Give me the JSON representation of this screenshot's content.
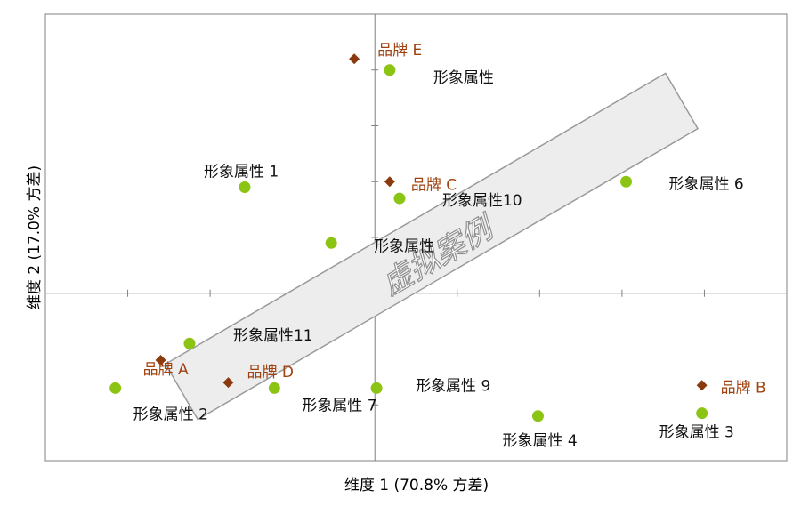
{
  "chart_data": {
    "type": "scatter",
    "xlabel": "维度 1 (70.8% 方差)",
    "ylabel": "维度 2 (17.0% 方差)",
    "xlim": [
      -4.0,
      5.0
    ],
    "ylim": [
      -3.0,
      5.0
    ],
    "axis_style": "crosshair through origin",
    "grid": false,
    "watermark": "虚拟案例",
    "series": [
      {
        "name": "品牌",
        "color": "#8b3a0f",
        "marker": "diamond",
        "points": [
          {
            "label": "品牌 E",
            "x": -0.25,
            "y": 4.2
          },
          {
            "label": "品牌 C",
            "x": 0.18,
            "y": 2.0
          },
          {
            "label": "品牌 A",
            "x": -2.6,
            "y": -1.2
          },
          {
            "label": "品牌 D",
            "x": -1.78,
            "y": -1.6
          },
          {
            "label": "品牌 B",
            "x": 3.97,
            "y": -1.65
          }
        ]
      },
      {
        "name": "形象属性",
        "color": "#8cc414",
        "marker": "circle",
        "points": [
          {
            "label": "形象属性",
            "x": 0.18,
            "y": 4.0
          },
          {
            "label": "形象属性 1",
            "x": -1.58,
            "y": 1.9
          },
          {
            "label": "形象属性10",
            "x": 0.3,
            "y": 1.7
          },
          {
            "label": "形象属性 6",
            "x": 3.05,
            "y": 2.0
          },
          {
            "label": "形象属性",
            "x": -0.53,
            "y": 0.9
          },
          {
            "label": "形象属性11",
            "x": -2.25,
            "y": -0.9
          },
          {
            "label": "形象属性 2",
            "x": -3.15,
            "y": -1.7
          },
          {
            "label": "形象属性 7",
            "x": -1.22,
            "y": -1.7
          },
          {
            "label": "形象属性 9",
            "x": 0.02,
            "y": -1.7
          },
          {
            "label": "形象属性 4",
            "x": 1.98,
            "y": -2.2
          },
          {
            "label": "形象属性 3",
            "x": 3.97,
            "y": -2.15
          }
        ]
      }
    ]
  }
}
